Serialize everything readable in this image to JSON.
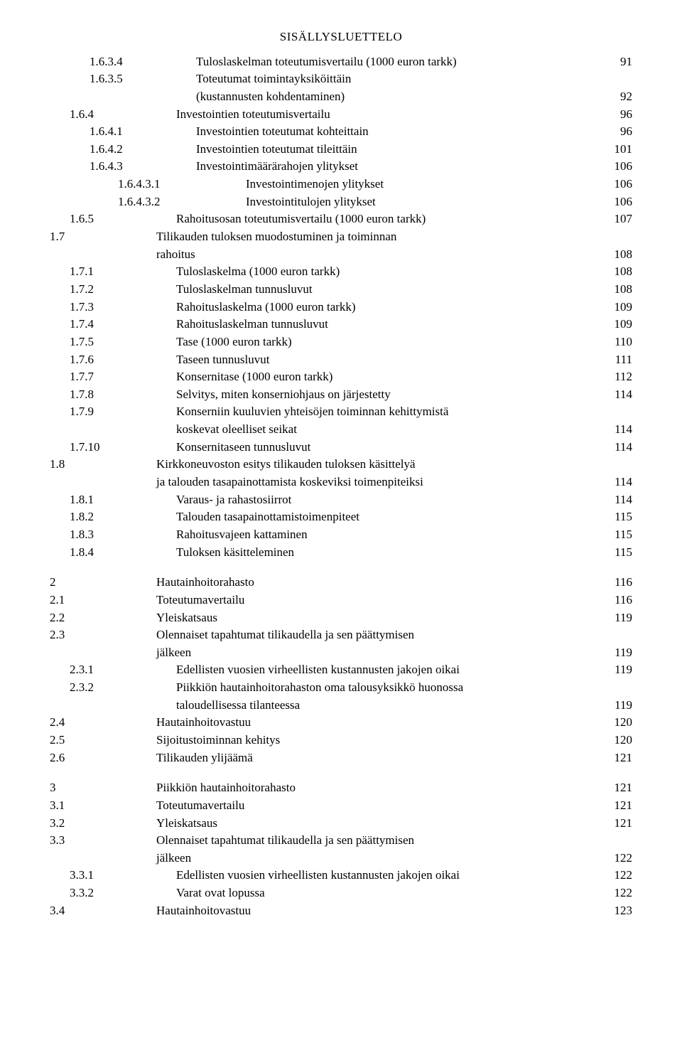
{
  "title": "SISÄLLYSLUETTELO",
  "toc": [
    {
      "indent": 2,
      "num": "1.6.3.4",
      "label": "Tuloslaskelman toteutumisvertailu (1000 euron tarkk)",
      "page": "91"
    },
    {
      "indent": 2,
      "num": "1.6.3.5",
      "label": "Toteutumat toimintayksiköittäin",
      "page": ""
    },
    {
      "indent": 2,
      "num": "",
      "label": "(kustannusten kohdentaminen)",
      "page": "92",
      "cont": true
    },
    {
      "indent": 1,
      "num": "1.6.4",
      "label": "Investointien toteutumisvertailu",
      "page": "96"
    },
    {
      "indent": 2,
      "num": "1.6.4.1",
      "label": "Investointien toteutumat kohteittain",
      "page": "96"
    },
    {
      "indent": 2,
      "num": "1.6.4.2",
      "label": "Investointien toteutumat tileittäin",
      "page": "101"
    },
    {
      "indent": 2,
      "num": "1.6.4.3",
      "label": "Investointimäärärahojen ylitykset",
      "page": "106"
    },
    {
      "indent": 3,
      "num": "1.6.4.3.1",
      "label": "Investointimenojen ylitykset",
      "page": "106"
    },
    {
      "indent": 3,
      "num": "1.6.4.3.2",
      "label": "Investointitulojen ylitykset",
      "page": "106"
    },
    {
      "indent": 1,
      "num": "1.6.5",
      "label": "Rahoitusosan toteutumisvertailu (1000 euron tarkk)",
      "page": "107"
    },
    {
      "indent": 0,
      "num": "1.7",
      "label": "Tilikauden tuloksen muodostuminen ja toiminnan",
      "page": ""
    },
    {
      "indent": 0,
      "num": "",
      "label": "rahoitus",
      "page": "108",
      "cont": true
    },
    {
      "indent": 1,
      "num": "1.7.1",
      "label": "Tuloslaskelma (1000 euron tarkk)",
      "page": "108"
    },
    {
      "indent": 1,
      "num": "1.7.2",
      "label": "Tuloslaskelman tunnusluvut",
      "page": "108"
    },
    {
      "indent": 1,
      "num": "1.7.3",
      "label": "Rahoituslaskelma (1000 euron tarkk)",
      "page": "109"
    },
    {
      "indent": 1,
      "num": "1.7.4",
      "label": "Rahoituslaskelman tunnusluvut",
      "page": "109"
    },
    {
      "indent": 1,
      "num": "1.7.5",
      "label": "Tase (1000 euron tarkk)",
      "page": "110"
    },
    {
      "indent": 1,
      "num": "1.7.6",
      "label": "Taseen tunnusluvut",
      "page": "111"
    },
    {
      "indent": 1,
      "num": "1.7.7",
      "label": "Konsernitase (1000 euron tarkk)",
      "page": "112"
    },
    {
      "indent": 1,
      "num": "1.7.8",
      "label": "Selvitys, miten konserniohjaus on järjestetty",
      "page": "114"
    },
    {
      "indent": 1,
      "num": "1.7.9",
      "label": "Konserniin kuuluvien yhteisöjen toiminnan kehittymistä",
      "page": ""
    },
    {
      "indent": 1,
      "num": "",
      "label": "koskevat oleelliset seikat",
      "page": "114",
      "cont": true
    },
    {
      "indent": 1,
      "num": "1.7.10",
      "label": "Konsernitaseen tunnusluvut",
      "page": "114"
    },
    {
      "indent": 0,
      "num": "1.8",
      "label": "Kirkkoneuvoston esitys tilikauden tuloksen käsittelyä",
      "page": ""
    },
    {
      "indent": 0,
      "num": "",
      "label": "ja talouden tasapainottamista koskeviksi toimenpiteiksi",
      "page": "114",
      "cont": true
    },
    {
      "indent": 1,
      "num": "1.8.1",
      "label": "Varaus- ja rahastosiirrot",
      "page": "114"
    },
    {
      "indent": 1,
      "num": "1.8.2",
      "label": "Talouden tasapainottamistoimenpiteet",
      "page": "115"
    },
    {
      "indent": 1,
      "num": "1.8.3",
      "label": "Rahoitusvajeen kattaminen",
      "page": "115"
    },
    {
      "indent": 1,
      "num": "1.8.4",
      "label": "Tuloksen käsitteleminen",
      "page": "115"
    },
    {
      "gap": true
    },
    {
      "indent": 0,
      "num": "2",
      "label": "Hautainhoitorahasto",
      "page": "116"
    },
    {
      "indent": 0,
      "num": "2.1",
      "label": "Toteutumavertailu",
      "page": "116"
    },
    {
      "indent": 0,
      "num": "2.2",
      "label": "Yleiskatsaus",
      "page": "119"
    },
    {
      "indent": 0,
      "num": "2.3",
      "label": "Olennaiset tapahtumat tilikaudella ja sen päättymisen",
      "page": ""
    },
    {
      "indent": 0,
      "num": "",
      "label": "jälkeen",
      "page": "119",
      "cont": true
    },
    {
      "indent": 1,
      "num": "2.3.1",
      "label": "Edellisten vuosien virheellisten kustannusten jakojen oikai",
      "page": "119"
    },
    {
      "indent": 1,
      "num": "2.3.2",
      "label": "Piikkiön hautainhoitorahaston oma talousyksikkö huonossa",
      "page": ""
    },
    {
      "indent": 1,
      "num": "",
      "label": "taloudellisessa tilanteessa",
      "page": "119",
      "cont": true
    },
    {
      "indent": 0,
      "num": "2.4",
      "label": "Hautainhoitovastuu",
      "page": "120"
    },
    {
      "indent": 0,
      "num": "2.5",
      "label": "Sijoitustoiminnan kehitys",
      "page": "120"
    },
    {
      "indent": 0,
      "num": "2.6",
      "label": "Tilikauden ylijäämä",
      "page": "121"
    },
    {
      "gap": true
    },
    {
      "indent": 0,
      "num": "3",
      "label": "Piikkiön hautainhoitorahasto",
      "page": "121"
    },
    {
      "indent": 0,
      "num": "3.1",
      "label": "Toteutumavertailu",
      "page": "121"
    },
    {
      "indent": 0,
      "num": "3.2",
      "label": "Yleiskatsaus",
      "page": "121"
    },
    {
      "indent": 0,
      "num": "3.3",
      "label": "Olennaiset tapahtumat tilikaudella ja sen päättymisen",
      "page": ""
    },
    {
      "indent": 0,
      "num": "",
      "label": "jälkeen",
      "page": "122",
      "cont": true
    },
    {
      "indent": 1,
      "num": "3.3.1",
      "label": "Edellisten vuosien virheellisten kustannusten jakojen oikai",
      "page": "122"
    },
    {
      "indent": 1,
      "num": "3.3.2",
      "label": "Varat ovat lopussa",
      "page": "122"
    },
    {
      "indent": 0,
      "num": "3.4",
      "label": "Hautainhoitovastuu",
      "page": "123"
    }
  ]
}
